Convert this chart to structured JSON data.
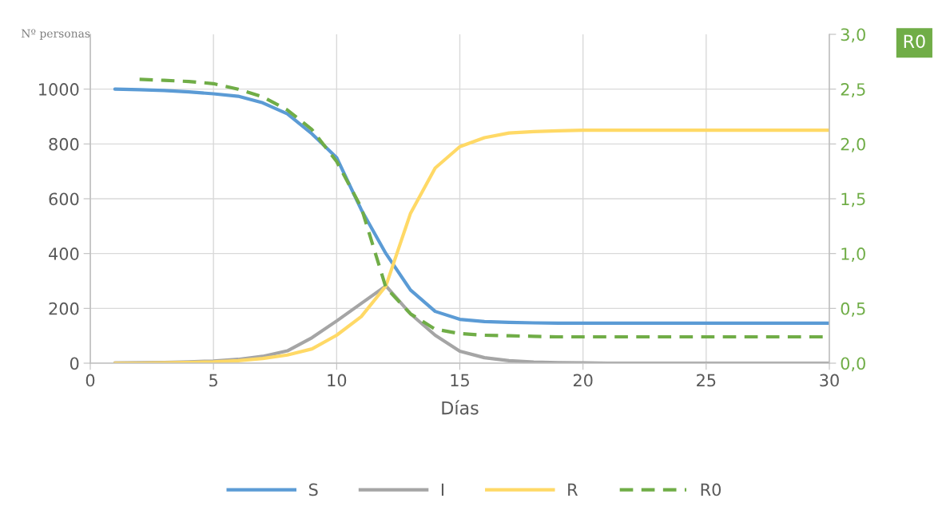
{
  "chart_data": {
    "type": "line",
    "xlabel": "Días",
    "ylabel": "Nº personas",
    "y2label": "R0",
    "x": [
      1,
      2,
      3,
      4,
      5,
      6,
      7,
      8,
      9,
      10,
      11,
      12,
      13,
      14,
      15,
      16,
      17,
      18,
      19,
      20,
      21,
      22,
      23,
      24,
      25,
      26,
      27,
      28,
      29,
      30
    ],
    "series": [
      {
        "name": "S",
        "color": "#5b9bd5",
        "values": [
          1000,
          998,
          995,
          990,
          983,
          974,
          950,
          910,
          837,
          750,
          560,
          400,
          267,
          189,
          160,
          152,
          149,
          147,
          146,
          146,
          146,
          146,
          146,
          146,
          146,
          146,
          146,
          146,
          146,
          146
        ]
      },
      {
        "name": "I",
        "color": "#a5a5a5",
        "values": [
          1,
          2,
          3,
          5,
          8,
          14,
          25,
          45,
          93,
          154,
          218,
          282,
          180,
          102,
          44,
          20,
          9,
          4,
          2,
          1,
          0,
          0,
          0,
          0,
          0,
          0,
          0,
          0,
          0,
          0
        ]
      },
      {
        "name": "R",
        "color": "#ffd966",
        "values": [
          0,
          0,
          1,
          3,
          5,
          9,
          17,
          30,
          52,
          102,
          170,
          282,
          547,
          712,
          790,
          823,
          840,
          845,
          848,
          850,
          850,
          850,
          850,
          850,
          850,
          850,
          850,
          850,
          850,
          850
        ]
      },
      {
        "name": "R0",
        "color": "#70ad47",
        "axis": "y2",
        "line_style": "dashed",
        "values": [
          null,
          2.59,
          2.58,
          2.57,
          2.55,
          2.5,
          2.43,
          2.31,
          2.13,
          1.84,
          1.42,
          0.69,
          0.45,
          0.31,
          0.27,
          0.255,
          0.25,
          0.245,
          0.24,
          0.24,
          0.24,
          0.24,
          0.24,
          0.24,
          0.24,
          0.24,
          0.24,
          0.24,
          0.24,
          0.24
        ]
      }
    ],
    "xlim": [
      0,
      30
    ],
    "xticks": [
      0,
      5,
      10,
      15,
      20,
      25,
      30
    ],
    "ylim": [
      0,
      1200
    ],
    "yticks": [
      0,
      200,
      400,
      600,
      800,
      1000
    ],
    "y2lim": [
      0,
      3
    ],
    "y2ticks": [
      {
        "value": 0,
        "label": "0,0"
      },
      {
        "value": 0.5,
        "label": "0,5"
      },
      {
        "value": 1,
        "label": "1,0"
      },
      {
        "value": 1.5,
        "label": "1,5"
      },
      {
        "value": 2,
        "label": "2,0"
      },
      {
        "value": 2.5,
        "label": "2,5"
      },
      {
        "value": 3,
        "label": "3,0"
      }
    ],
    "grid": true,
    "legend": "bottom",
    "marker": "none"
  }
}
